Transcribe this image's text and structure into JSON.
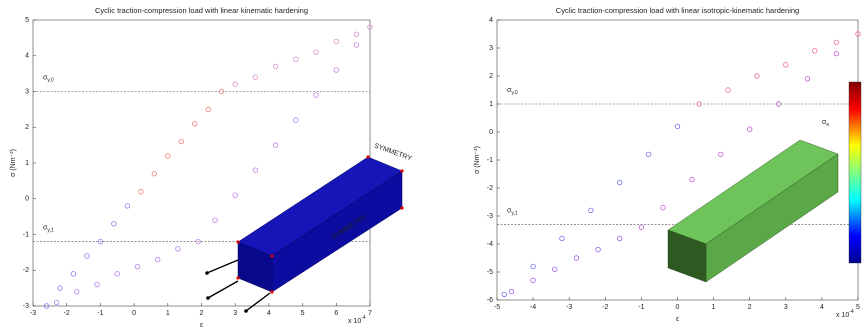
{
  "chart_data": [
    {
      "type": "scatter",
      "title": "Cyclic traction-compression load with linear kinematic hardening",
      "xlabel": "ε",
      "ylabel": "σ (Nm⁻²)",
      "x_multiplier": "x 10",
      "x_multiplier_exponent": "-4",
      "xlim": [
        -3,
        7
      ],
      "xticks": [
        -3,
        -2,
        -1,
        0,
        1,
        2,
        3,
        4,
        5,
        6,
        7
      ],
      "ylim": [
        -3,
        5
      ],
      "yticks": [
        -3,
        -2,
        -1,
        0,
        1,
        2,
        3,
        4,
        5
      ],
      "hlines": [
        {
          "value": 3,
          "symbol": "σ",
          "subscript": "y,0"
        },
        {
          "value": -1.2,
          "symbol": "σ",
          "subscript": "y,1"
        }
      ],
      "annotations": [
        "SYMMETRY",
        "SYMMETRY"
      ],
      "series": [
        {
          "color": "#8080ee",
          "x": [
            -2.6,
            -2.2,
            -1.8,
            -1.4,
            -1.0,
            -0.6,
            -0.2
          ],
          "values": [
            -3.0,
            -2.5,
            -2.1,
            -1.6,
            -1.2,
            -0.7,
            -0.2
          ]
        },
        {
          "color": "#ee8080",
          "x": [
            0.2,
            0.6,
            1.0,
            1.4,
            1.8,
            2.2,
            2.6
          ],
          "values": [
            0.2,
            0.7,
            1.2,
            1.6,
            2.1,
            2.5,
            3.0
          ]
        },
        {
          "color": "#e090c8",
          "x": [
            3.0,
            3.6,
            4.2,
            4.8,
            5.4,
            6.0,
            6.6,
            7.0
          ],
          "values": [
            3.2,
            3.4,
            3.7,
            3.9,
            4.1,
            4.4,
            4.6,
            4.8
          ]
        },
        {
          "color": "#c080e0",
          "x": [
            6.6,
            6.0,
            5.4,
            4.8,
            4.2,
            3.6,
            3.0,
            2.4,
            1.9
          ],
          "values": [
            4.3,
            3.6,
            2.9,
            2.2,
            1.5,
            0.8,
            0.1,
            -0.6,
            -1.2
          ]
        },
        {
          "color": "#b080f0",
          "x": [
            1.3,
            0.7,
            0.1,
            -0.5,
            -1.1,
            -1.7,
            -2.3
          ],
          "values": [
            -1.4,
            -1.7,
            -1.9,
            -2.1,
            -2.4,
            -2.6,
            -2.9
          ]
        }
      ]
    },
    {
      "type": "scatter",
      "title": "Cyclic traction-compression load with linear isotropic-kinematic hardening",
      "xlabel": "ε",
      "ylabel": "σ (Nm⁻²)",
      "x_multiplier": "x 10",
      "x_multiplier_exponent": "-4",
      "xlim": [
        -5,
        5
      ],
      "xticks": [
        -5,
        -4,
        -3,
        -2,
        -1,
        0,
        1,
        2,
        3,
        4,
        5
      ],
      "ylim": [
        -6,
        4
      ],
      "yticks": [
        -6,
        -5,
        -4,
        -3,
        -2,
        -1,
        0,
        1,
        2,
        3,
        4
      ],
      "hlines": [
        {
          "value": 1,
          "symbol": "σ",
          "subscript": "y,0"
        },
        {
          "value": -3.3,
          "symbol": "σ",
          "subscript": "y,1"
        }
      ],
      "annotations": [
        "σ",
        "e"
      ],
      "series": [
        {
          "color": "#7070ee",
          "x": [
            -4.8,
            -4.0,
            -3.2,
            -2.4,
            -1.6,
            -0.8,
            0.0
          ],
          "values": [
            -5.8,
            -4.8,
            -3.8,
            -2.8,
            -1.8,
            -0.8,
            0.2
          ]
        },
        {
          "color": "#ee7090",
          "x": [
            0.6,
            1.4,
            2.2,
            3.0,
            3.8,
            4.4,
            5.0
          ],
          "values": [
            1.0,
            1.5,
            2.0,
            2.4,
            2.9,
            3.2,
            3.5
          ]
        },
        {
          "color": "#c060d0",
          "x": [
            4.4,
            3.6,
            2.8,
            2.0,
            1.2,
            0.4,
            -0.4,
            -1.0
          ],
          "values": [
            2.8,
            1.9,
            1.0,
            0.1,
            -0.8,
            -1.7,
            -2.7,
            -3.4
          ]
        },
        {
          "color": "#9a60e8",
          "x": [
            -1.6,
            -2.2,
            -2.8,
            -3.4,
            -4.0,
            -4.6
          ],
          "values": [
            -3.8,
            -4.2,
            -4.5,
            -4.9,
            -5.3,
            -5.7
          ]
        }
      ]
    }
  ]
}
